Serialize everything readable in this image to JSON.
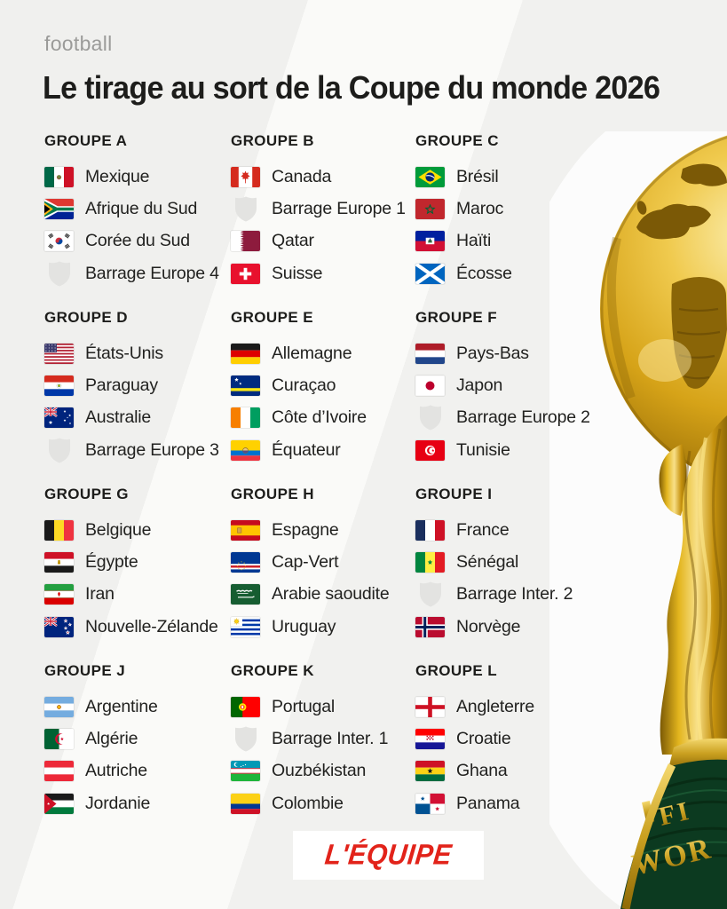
{
  "header": {
    "category": "football",
    "title": "Le tirage au sort de la Coupe du monde 2026"
  },
  "groups": [
    {
      "name": "GROUPE A",
      "teams": [
        {
          "name": "Mexique",
          "flag": "mex"
        },
        {
          "name": "Afrique du Sud",
          "flag": "rsa"
        },
        {
          "name": "Corée du Sud",
          "flag": "kor"
        },
        {
          "name": "Barrage Europe 4",
          "flag": "shield"
        }
      ]
    },
    {
      "name": "GROUPE B",
      "teams": [
        {
          "name": "Canada",
          "flag": "can"
        },
        {
          "name": "Barrage Europe 1",
          "flag": "shield"
        },
        {
          "name": "Qatar",
          "flag": "qat"
        },
        {
          "name": "Suisse",
          "flag": "sui"
        }
      ]
    },
    {
      "name": "GROUPE C",
      "teams": [
        {
          "name": "Brésil",
          "flag": "bra"
        },
        {
          "name": "Maroc",
          "flag": "mar"
        },
        {
          "name": "Haïti",
          "flag": "hai"
        },
        {
          "name": "Écosse",
          "flag": "sco"
        }
      ]
    },
    {
      "name": "GROUPE D",
      "teams": [
        {
          "name": "États-Unis",
          "flag": "usa"
        },
        {
          "name": "Paraguay",
          "flag": "par"
        },
        {
          "name": "Australie",
          "flag": "aus"
        },
        {
          "name": "Barrage Europe 3",
          "flag": "shield"
        }
      ]
    },
    {
      "name": "GROUPE E",
      "teams": [
        {
          "name": "Allemagne",
          "flag": "ger"
        },
        {
          "name": "Curaçao",
          "flag": "cur"
        },
        {
          "name": "Côte d’Ivoire",
          "flag": "civ"
        },
        {
          "name": "Équateur",
          "flag": "ecu"
        }
      ]
    },
    {
      "name": "GROUPE F",
      "teams": [
        {
          "name": "Pays-Bas",
          "flag": "ned"
        },
        {
          "name": "Japon",
          "flag": "jpn"
        },
        {
          "name": "Barrage Europe 2",
          "flag": "shield"
        },
        {
          "name": "Tunisie",
          "flag": "tun"
        }
      ]
    },
    {
      "name": "GROUPE G",
      "teams": [
        {
          "name": "Belgique",
          "flag": "bel"
        },
        {
          "name": "Égypte",
          "flag": "egy"
        },
        {
          "name": "Iran",
          "flag": "irn"
        },
        {
          "name": "Nouvelle-Zélande",
          "flag": "nzl"
        }
      ]
    },
    {
      "name": "GROUPE H",
      "teams": [
        {
          "name": "Espagne",
          "flag": "esp"
        },
        {
          "name": "Cap-Vert",
          "flag": "cpv"
        },
        {
          "name": "Arabie saoudite",
          "flag": "ksa"
        },
        {
          "name": "Uruguay",
          "flag": "uru"
        }
      ]
    },
    {
      "name": "GROUPE I",
      "teams": [
        {
          "name": "France",
          "flag": "fra"
        },
        {
          "name": "Sénégal",
          "flag": "sen"
        },
        {
          "name": "Barrage Inter. 2",
          "flag": "shield"
        },
        {
          "name": "Norvège",
          "flag": "nor"
        }
      ]
    },
    {
      "name": "GROUPE J",
      "teams": [
        {
          "name": "Argentine",
          "flag": "arg"
        },
        {
          "name": "Algérie",
          "flag": "alg"
        },
        {
          "name": "Autriche",
          "flag": "aut"
        },
        {
          "name": "Jordanie",
          "flag": "jor"
        }
      ]
    },
    {
      "name": "GROUPE K",
      "teams": [
        {
          "name": "Portugal",
          "flag": "por"
        },
        {
          "name": "Barrage Inter. 1",
          "flag": "shield"
        },
        {
          "name": "Ouzbékistan",
          "flag": "uzb"
        },
        {
          "name": "Colombie",
          "flag": "col"
        }
      ]
    },
    {
      "name": "GROUPE L",
      "teams": [
        {
          "name": "Angleterre",
          "flag": "eng"
        },
        {
          "name": "Croatie",
          "flag": "cro"
        },
        {
          "name": "Ghana",
          "flag": "gha"
        },
        {
          "name": "Panama",
          "flag": "pan"
        }
      ]
    }
  ],
  "footer": {
    "brand": "L'ÉQUIPE"
  },
  "trophy": {
    "name": "FIFA World Cup trophy"
  },
  "colors": {
    "background_gray": "#f1f1ef",
    "text": "#1d1d1b",
    "category_gray": "#9b9b99",
    "brand_red": "#e2231a",
    "shield_gray": "#e3e3e1",
    "trophy_gold": "#d6a318",
    "trophy_base_green": "#0c3a20"
  }
}
